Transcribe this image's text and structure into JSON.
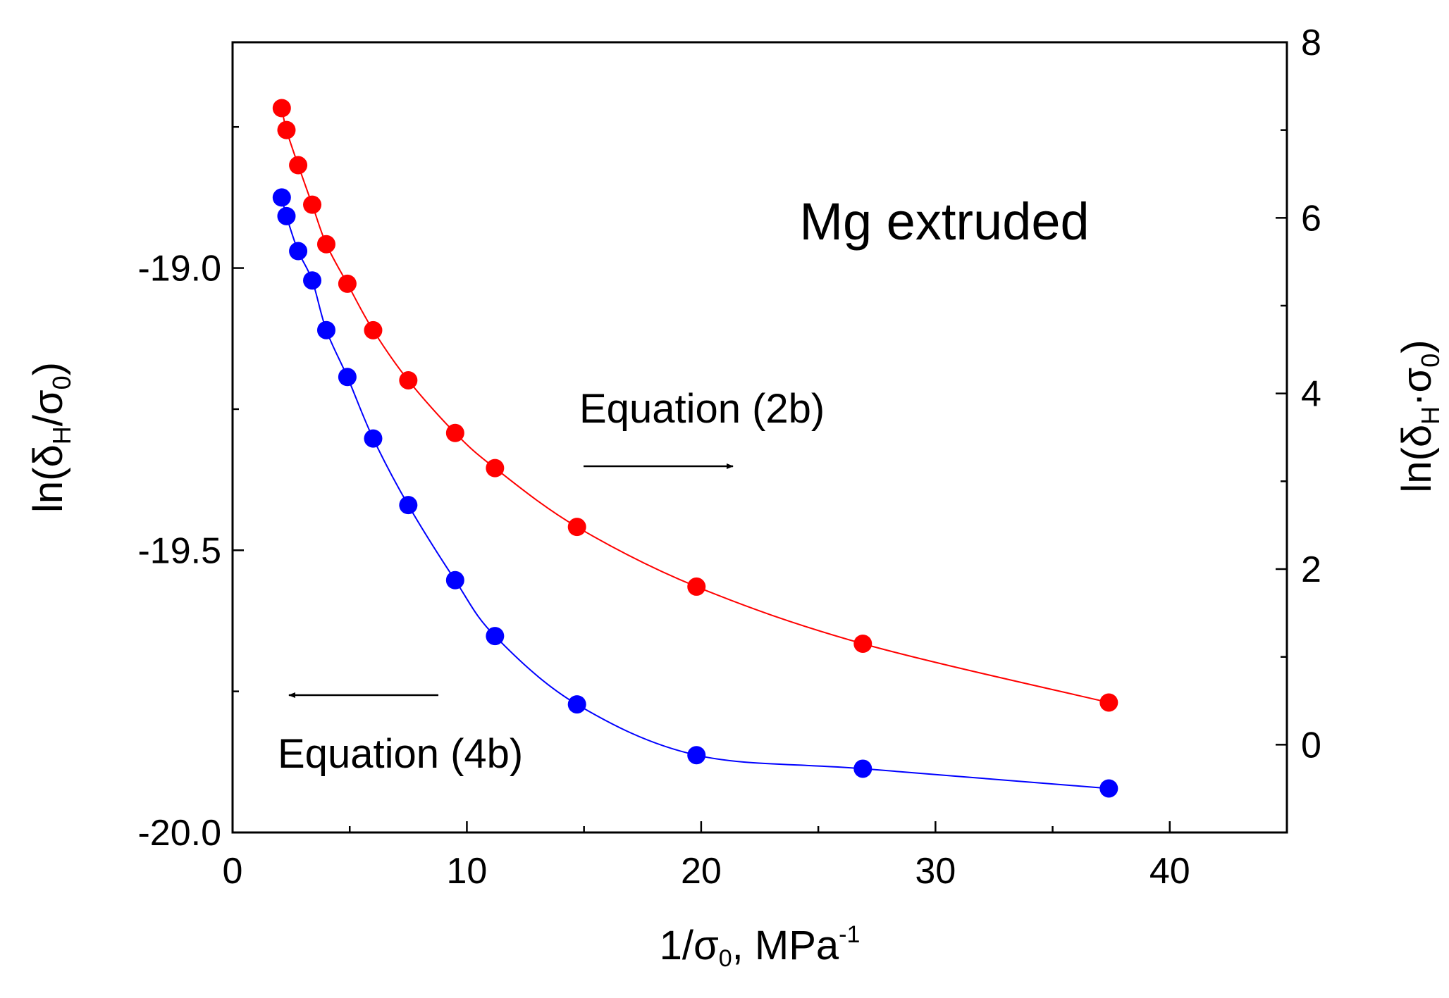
{
  "chart_data": {
    "type": "scatter",
    "title": "Mg extruded",
    "xlabel": "1/σ₀, MPa⁻¹",
    "xlabel_parts": {
      "base": "1/σ",
      "sub": "0",
      "rest": ", MPa",
      "sup": "-1"
    },
    "ylabel_left": "ln(δH/σ0)",
    "ylabel_left_parts": {
      "pre": "ln(δ",
      "sub1": "H",
      "mid": "/σ",
      "sub2": "0",
      "post": ")"
    },
    "ylabel_right": "ln(δH·σ0)",
    "ylabel_right_parts": {
      "pre": "ln(δ",
      "sub1": "H",
      "mid": "·σ",
      "sub2": "0",
      "post": ")"
    },
    "xlim": [
      0,
      45
    ],
    "ylim_left": [
      -20.0,
      -18.6
    ],
    "ylim_right": [
      -1,
      8
    ],
    "x_ticks": [
      0,
      10,
      20,
      30,
      40
    ],
    "y_left_ticks": [
      -20.0,
      -19.5,
      -19.0
    ],
    "y_right_ticks": [
      0,
      2,
      4,
      6,
      8
    ],
    "x_tick_labels": [
      "0",
      "10",
      "20",
      "30",
      "40"
    ],
    "y_left_tick_labels": [
      "-20.0",
      "-19.5",
      "-19.0"
    ],
    "y_right_tick_labels": [
      "0",
      "2",
      "4",
      "6",
      "8"
    ],
    "grid": false,
    "series": [
      {
        "name": "Equation (4b)",
        "axis": "left",
        "color": "#0000ff",
        "x": [
          2.1,
          2.3,
          2.8,
          3.4,
          4.0,
          4.9,
          6.0,
          7.5,
          9.5,
          11.2,
          14.7,
          19.8,
          26.9,
          37.4
        ],
        "y": [
          -18.875,
          -18.908,
          -18.97,
          -19.022,
          -19.11,
          -19.193,
          -19.302,
          -19.42,
          -19.553,
          -19.652,
          -19.773,
          -19.863,
          -19.887,
          -19.922
        ]
      },
      {
        "name": "Equation (2b)",
        "axis": "right",
        "color": "#ff0000",
        "x": [
          2.1,
          2.3,
          2.8,
          3.4,
          4.0,
          4.9,
          6.0,
          7.5,
          9.5,
          11.2,
          14.7,
          19.8,
          26.9,
          37.4
        ],
        "y": [
          7.25,
          7.0,
          6.6,
          6.15,
          5.7,
          5.25,
          4.72,
          4.15,
          3.55,
          3.15,
          2.48,
          1.8,
          1.15,
          0.48
        ]
      }
    ],
    "annotations": [
      {
        "text": "Equation (2b)",
        "arrow": "right",
        "refers_to": "right axis"
      },
      {
        "text": "Equation (4b)",
        "arrow": "left",
        "refers_to": "left axis"
      }
    ]
  }
}
